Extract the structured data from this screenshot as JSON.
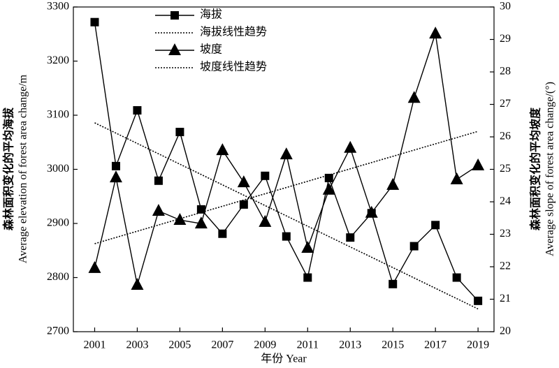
{
  "chart_data": {
    "type": "line",
    "x": [
      2001,
      2002,
      2003,
      2004,
      2005,
      2006,
      2007,
      2008,
      2009,
      2010,
      2011,
      2012,
      2013,
      2014,
      2015,
      2016,
      2017,
      2018,
      2019
    ],
    "series": [
      {
        "name": "海拔",
        "color": "#000000",
        "marker": "square",
        "axis": "y",
        "values": [
          3272,
          3006,
          3109,
          2979,
          3069,
          2926,
          2881,
          2935,
          2988,
          2876,
          2800,
          2984,
          2874,
          2919,
          2788,
          2858,
          2897,
          2800,
          2757
        ]
      },
      {
        "name": "海拔线性趋势",
        "color": "#000000",
        "dashed": true,
        "axis": "y",
        "x": [
          2001,
          2019
        ],
        "values": [
          3086,
          2742
        ]
      },
      {
        "name": "坡度",
        "color": "#000000",
        "marker": "triangle",
        "axis": "y2",
        "values": [
          21.96,
          24.75,
          21.44,
          23.72,
          23.44,
          23.33,
          25.59,
          24.6,
          23.38,
          25.46,
          22.58,
          24.37,
          25.66,
          23.66,
          24.52,
          27.2,
          29.18,
          24.69,
          25.12
        ]
      },
      {
        "name": "坡度线性趋势",
        "color": "#000000",
        "dashed": true,
        "axis": "y2",
        "x": [
          2001,
          2019
        ],
        "values": [
          22.71,
          26.17
        ]
      }
    ],
    "xlabel": "年份 Year",
    "ylabel": [
      "森林面积变化的平均海拔",
      "Average elevation of forest area change/m"
    ],
    "y2label": [
      "森林面积变化的平均坡度",
      "Average slope of forest area change/(°)"
    ],
    "xlim": [
      2000,
      2019.75
    ],
    "xticks": [
      2001,
      2003,
      2005,
      2007,
      2009,
      2011,
      2013,
      2015,
      2017,
      2019
    ],
    "ylim": [
      2700,
      3300
    ],
    "yticks": [
      2700,
      2800,
      2900,
      3000,
      3100,
      3200,
      3300
    ],
    "y2lim": [
      20,
      30
    ],
    "y2ticks": [
      20,
      21,
      22,
      23,
      24,
      25,
      26,
      27,
      28,
      29,
      30
    ],
    "legend": "upper left"
  }
}
